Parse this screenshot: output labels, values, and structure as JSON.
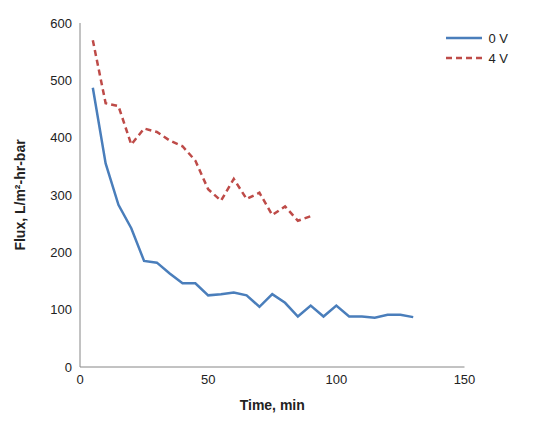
{
  "chart_data": {
    "type": "line",
    "x_label": "Time, min",
    "y_label": "Flux, L/m²-hr-bar",
    "xlim": [
      0,
      150
    ],
    "xticks": [
      0,
      50,
      100,
      150
    ],
    "ylim": [
      0,
      600
    ],
    "yticks": [
      0,
      100,
      200,
      300,
      400,
      500,
      600
    ],
    "grid": false,
    "legend": "upper right",
    "series": [
      {
        "name": "0 V",
        "color": "#4a7ebb",
        "line_style": "solid",
        "marker": "none",
        "x": [
          5,
          10,
          15,
          20,
          25,
          30,
          35,
          40,
          45,
          50,
          55,
          60,
          65,
          70,
          75,
          80,
          85,
          90,
          95,
          100,
          105,
          110,
          115,
          120,
          125,
          130
        ],
        "values": [
          487,
          355,
          283,
          242,
          185,
          182,
          163,
          146,
          146,
          125,
          127,
          130,
          125,
          105,
          127,
          112,
          88,
          107,
          88,
          107,
          88,
          88,
          86,
          91,
          91,
          87
        ]
      },
      {
        "name": "4 V",
        "color": "#be4b48",
        "line_style": "dashed",
        "marker": "none",
        "x": [
          5,
          10,
          15,
          20,
          25,
          30,
          35,
          40,
          45,
          50,
          55,
          60,
          65,
          70,
          75,
          80,
          85,
          90
        ],
        "values": [
          570,
          460,
          455,
          388,
          416,
          410,
          395,
          385,
          360,
          310,
          290,
          328,
          293,
          304,
          265,
          280,
          255,
          263
        ]
      }
    ]
  }
}
